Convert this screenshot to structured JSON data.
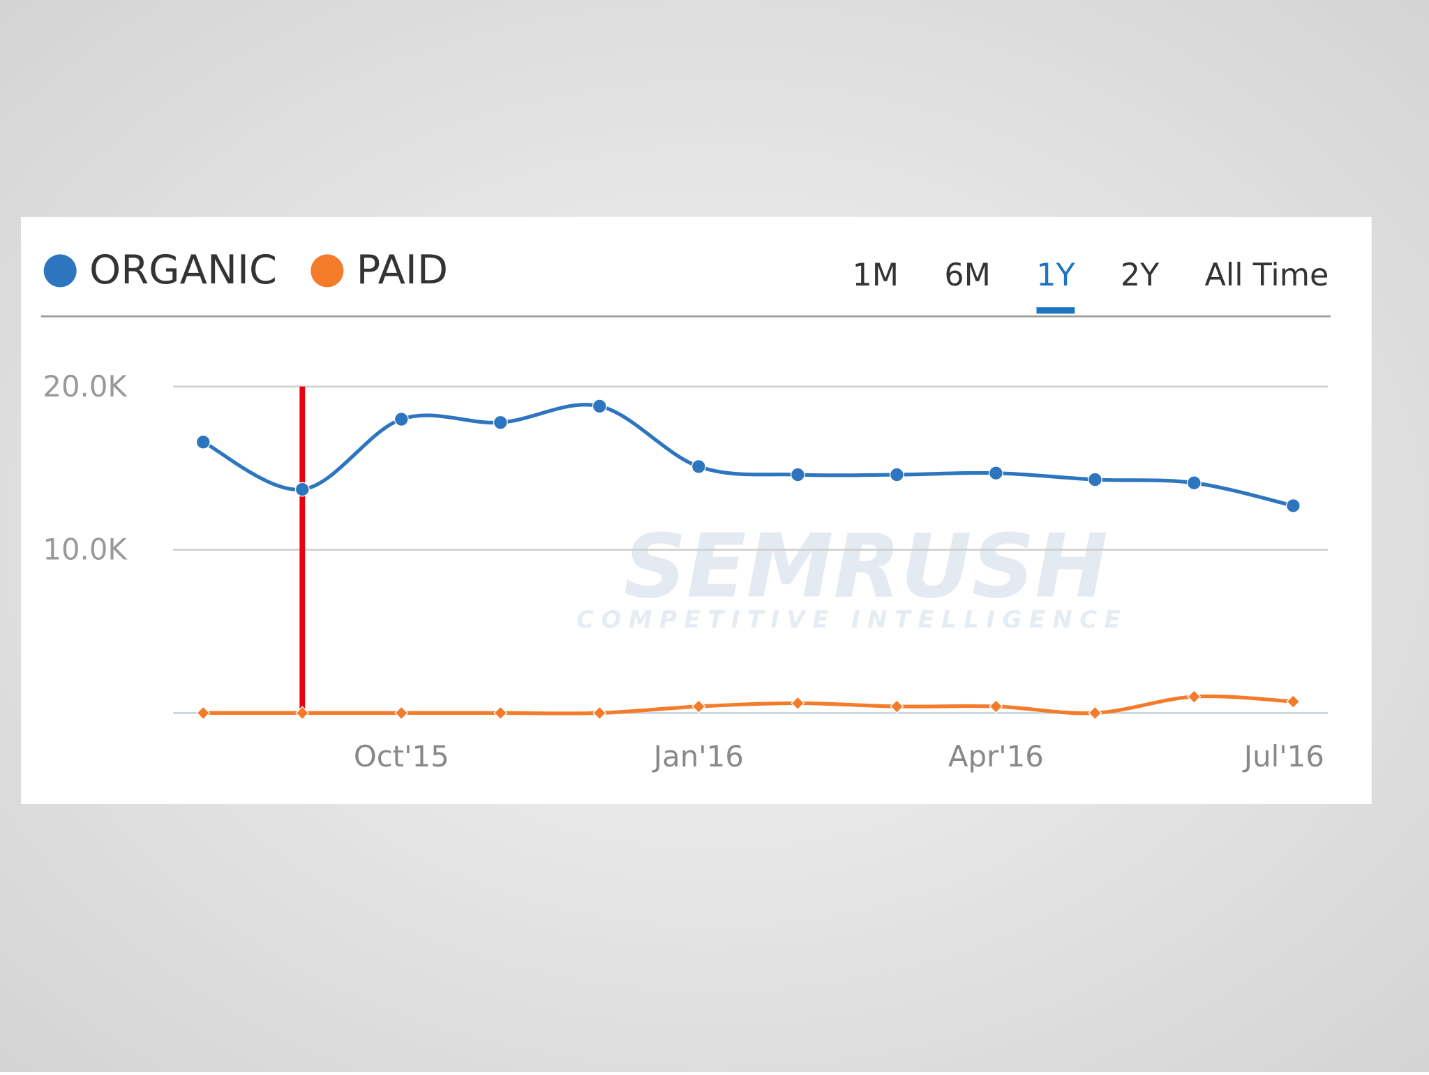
{
  "chart_data": {
    "type": "line",
    "series": [
      {
        "name": "ORGANIC",
        "color": "#2e75c0",
        "marker": "circle",
        "values": [
          16600,
          13700,
          18000,
          17800,
          18800,
          15100,
          14600,
          14600,
          14700,
          14300,
          14100,
          12700
        ]
      },
      {
        "name": "PAID",
        "color": "#f47b2a",
        "marker": "diamond",
        "values": [
          0,
          0,
          0,
          0,
          0,
          400,
          600,
          400,
          400,
          0,
          1000,
          700
        ]
      }
    ],
    "categories": [
      null,
      null,
      "Oct'15",
      null,
      null,
      "Jan'16",
      null,
      null,
      "Apr'16",
      null,
      null,
      "Jul'16"
    ],
    "ylim": [
      0,
      20000
    ],
    "yticks": [
      {
        "value": 10000,
        "label": "10.0K"
      },
      {
        "value": 20000,
        "label": "20.0K"
      }
    ],
    "grid": true,
    "range_buttons": [
      "1M",
      "6M",
      "1Y",
      "2Y",
      "All Time"
    ],
    "selected_range_index": 2,
    "selected_color": "#1f73c0",
    "vline": {
      "category_index": 1,
      "color": "#e8000b"
    },
    "watermark": [
      "SEMRUSH",
      "COMPETITIVE INTELLIGENCE"
    ]
  }
}
